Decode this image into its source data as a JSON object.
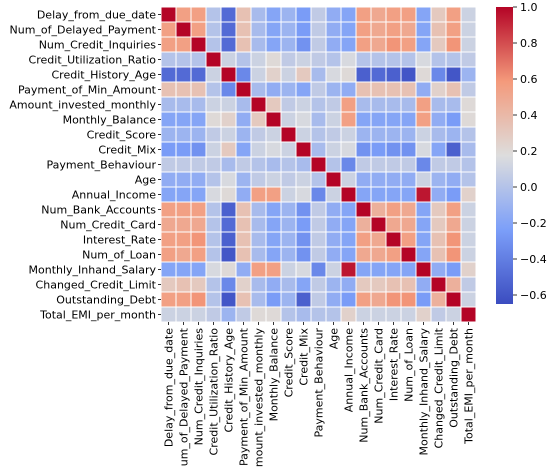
{
  "chart_data": {
    "type": "heatmap",
    "title": "",
    "xlabel": "",
    "ylabel": "",
    "variables": [
      "Delay_from_due_date",
      "Num_of_Delayed_Payment",
      "Num_Credit_Inquiries",
      "Credit_Utilization_Ratio",
      "Credit_History_Age",
      "Payment_of_Min_Amount",
      "Amount_invested_monthly",
      "Monthly_Balance",
      "Credit_Score",
      "Credit_Mix",
      "Payment_Behaviour",
      "Age",
      "Annual_Income",
      "Num_Bank_Accounts",
      "Num_Credit_Card",
      "Interest_Rate",
      "Num_of_Loan",
      "Monthly_Inhand_Salary",
      "Changed_Credit_Limit",
      "Outstanding_Debt",
      "Total_EMI_per_month"
    ],
    "matrix": [
      [
        1.0,
        0.55,
        0.55,
        0.0,
        -0.5,
        0.35,
        -0.05,
        -0.2,
        -0.1,
        -0.25,
        0.05,
        -0.15,
        -0.2,
        0.55,
        0.5,
        0.55,
        0.55,
        -0.2,
        0.3,
        0.55,
        0.1
      ],
      [
        0.55,
        1.0,
        0.55,
        0.0,
        -0.5,
        0.35,
        -0.05,
        -0.2,
        -0.1,
        -0.25,
        0.05,
        -0.15,
        -0.2,
        0.55,
        0.5,
        0.55,
        0.5,
        -0.2,
        0.35,
        0.55,
        0.1
      ],
      [
        0.55,
        0.55,
        1.0,
        0.0,
        -0.5,
        0.35,
        -0.05,
        -0.2,
        -0.1,
        -0.3,
        0.05,
        -0.15,
        -0.2,
        0.55,
        0.5,
        0.6,
        0.55,
        -0.2,
        0.3,
        0.6,
        0.1
      ],
      [
        0.0,
        0.0,
        0.0,
        1.0,
        0.1,
        0.0,
        0.1,
        0.2,
        0.05,
        0.1,
        0.05,
        0.0,
        0.15,
        0.0,
        0.0,
        0.0,
        0.0,
        0.15,
        0.0,
        0.0,
        0.05
      ],
      [
        -0.5,
        -0.5,
        -0.5,
        0.1,
        1.0,
        -0.35,
        0.1,
        0.25,
        0.1,
        0.3,
        -0.05,
        0.15,
        0.2,
        -0.55,
        -0.5,
        -0.55,
        -0.6,
        0.2,
        -0.35,
        -0.6,
        -0.1
      ],
      [
        0.35,
        0.35,
        0.35,
        0.0,
        -0.35,
        1.0,
        -0.05,
        -0.15,
        -0.1,
        -0.2,
        0.05,
        -0.1,
        -0.15,
        0.35,
        0.35,
        0.35,
        0.35,
        -0.15,
        0.25,
        0.35,
        0.05
      ],
      [
        -0.05,
        -0.05,
        -0.05,
        0.1,
        0.1,
        -0.05,
        1.0,
        0.3,
        0.05,
        0.1,
        0.0,
        0.05,
        0.55,
        -0.05,
        -0.05,
        -0.05,
        -0.05,
        0.55,
        -0.05,
        -0.05,
        0.2
      ],
      [
        -0.2,
        -0.2,
        -0.2,
        0.2,
        0.25,
        -0.15,
        0.3,
        1.0,
        0.1,
        0.15,
        -0.05,
        0.1,
        0.55,
        -0.2,
        -0.2,
        -0.2,
        -0.2,
        0.55,
        -0.15,
        -0.25,
        0.2
      ],
      [
        -0.1,
        -0.1,
        -0.1,
        0.05,
        0.1,
        -0.1,
        0.05,
        0.1,
        1.0,
        0.1,
        0.0,
        0.05,
        0.1,
        -0.1,
        -0.1,
        -0.1,
        -0.1,
        0.1,
        -0.05,
        -0.1,
        0.0
      ],
      [
        -0.25,
        -0.25,
        -0.3,
        0.1,
        0.3,
        -0.2,
        0.1,
        0.15,
        0.1,
        1.0,
        -0.05,
        0.1,
        0.15,
        -0.3,
        -0.25,
        -0.3,
        -0.3,
        0.15,
        -0.2,
        -0.55,
        -0.05
      ],
      [
        0.05,
        0.05,
        0.05,
        0.05,
        -0.05,
        0.05,
        0.0,
        -0.05,
        0.0,
        -0.05,
        1.0,
        0.0,
        -0.35,
        0.05,
        0.05,
        0.05,
        0.05,
        -0.35,
        0.05,
        0.05,
        0.0
      ],
      [
        -0.15,
        -0.15,
        -0.15,
        0.0,
        0.15,
        -0.1,
        0.05,
        0.1,
        0.05,
        0.1,
        0.0,
        1.0,
        0.1,
        -0.15,
        -0.15,
        -0.15,
        -0.15,
        0.1,
        -0.1,
        -0.15,
        0.0
      ],
      [
        -0.2,
        -0.2,
        -0.2,
        0.15,
        0.2,
        -0.15,
        0.55,
        0.55,
        0.1,
        0.15,
        -0.35,
        0.1,
        1.0,
        -0.2,
        -0.2,
        -0.2,
        -0.2,
        0.95,
        -0.15,
        -0.25,
        0.25
      ],
      [
        0.55,
        0.55,
        0.55,
        0.0,
        -0.55,
        0.35,
        -0.05,
        -0.2,
        -0.1,
        -0.3,
        0.05,
        -0.15,
        -0.2,
        1.0,
        0.45,
        0.55,
        0.5,
        -0.2,
        0.3,
        0.55,
        0.1
      ],
      [
        0.5,
        0.5,
        0.5,
        0.0,
        -0.5,
        0.35,
        -0.05,
        -0.2,
        -0.1,
        -0.25,
        0.05,
        -0.15,
        -0.2,
        0.45,
        1.0,
        0.5,
        0.5,
        -0.2,
        0.3,
        0.5,
        0.1
      ],
      [
        0.55,
        0.55,
        0.6,
        0.0,
        -0.55,
        0.35,
        -0.05,
        -0.2,
        -0.1,
        -0.3,
        0.05,
        -0.15,
        -0.2,
        0.55,
        0.5,
        1.0,
        0.55,
        -0.2,
        0.35,
        0.6,
        0.1
      ],
      [
        0.55,
        0.5,
        0.55,
        0.0,
        -0.6,
        0.35,
        -0.05,
        -0.2,
        -0.1,
        -0.3,
        0.05,
        -0.15,
        -0.2,
        0.5,
        0.5,
        0.55,
        1.0,
        -0.2,
        0.35,
        0.6,
        0.1
      ],
      [
        -0.2,
        -0.2,
        -0.2,
        0.15,
        0.2,
        -0.15,
        0.55,
        0.55,
        0.1,
        0.15,
        -0.35,
        0.1,
        0.95,
        -0.2,
        -0.2,
        -0.2,
        -0.2,
        1.0,
        -0.15,
        -0.25,
        0.25
      ],
      [
        0.3,
        0.35,
        0.3,
        0.0,
        -0.35,
        0.25,
        -0.05,
        -0.15,
        -0.05,
        -0.2,
        0.05,
        -0.1,
        -0.15,
        0.3,
        0.3,
        0.35,
        0.35,
        -0.15,
        1.0,
        0.45,
        0.05
      ],
      [
        0.55,
        0.55,
        0.6,
        0.0,
        -0.6,
        0.35,
        -0.05,
        -0.25,
        -0.1,
        -0.55,
        0.05,
        -0.15,
        -0.25,
        0.55,
        0.5,
        0.6,
        0.6,
        -0.25,
        0.45,
        1.0,
        0.1
      ],
      [
        0.1,
        0.1,
        0.1,
        0.05,
        -0.1,
        0.05,
        0.2,
        0.2,
        0.0,
        -0.05,
        0.0,
        0.0,
        0.25,
        0.1,
        0.1,
        0.1,
        0.1,
        0.25,
        0.05,
        0.1,
        1.0
      ]
    ],
    "colorbar": {
      "min": -0.65,
      "max": 1.0,
      "ticks": [
        -0.6,
        -0.4,
        -0.2,
        0.0,
        0.2,
        0.4,
        0.6,
        0.8,
        1.0
      ],
      "tick_labels": [
        "−0.6",
        "−0.4",
        "−0.2",
        "0.0",
        "0.2",
        "0.4",
        "0.6",
        "0.8",
        "1.0"
      ],
      "colormap": "coolwarm"
    },
    "cell_border_color": "#ffffff",
    "grid": false,
    "legend": "colorbar-right"
  }
}
